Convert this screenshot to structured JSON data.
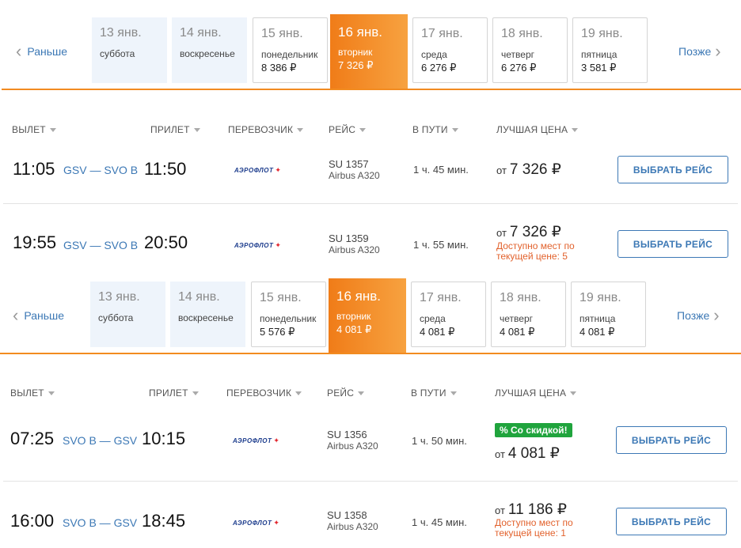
{
  "panels": [
    {
      "nav": {
        "prev": "Раньше",
        "next": "Позже"
      },
      "days": [
        {
          "date": "13 янв.",
          "weekday": "суббота",
          "price": "",
          "state": "past"
        },
        {
          "date": "14 янв.",
          "weekday": "воскресенье",
          "price": "",
          "state": "past"
        },
        {
          "date": "15 янв.",
          "weekday": "понедельник",
          "price": "8 386 ₽",
          "state": "future"
        },
        {
          "date": "16 янв.",
          "weekday": "вторник",
          "price": "7 326 ₽",
          "state": "selected"
        },
        {
          "date": "17 янв.",
          "weekday": "среда",
          "price": "6 276 ₽",
          "state": "future"
        },
        {
          "date": "18 янв.",
          "weekday": "четверг",
          "price": "6 276 ₽",
          "state": "future"
        },
        {
          "date": "19 янв.",
          "weekday": "пятница",
          "price": "3 581 ₽",
          "state": "future"
        }
      ],
      "headers": {
        "dep": "ВЫЛЕТ",
        "arr": "ПРИЛЕТ",
        "carrier": "ПЕРЕВОЗЧИК",
        "flight": "РЕЙС",
        "duration": "В ПУТИ",
        "price": "ЛУЧШАЯ ЦЕНА"
      },
      "flights": [
        {
          "dep": "11:05",
          "route": "GSV — SVO B",
          "arr": "11:50",
          "carrier_logo": "АЭРОФЛОТ",
          "number": "SU 1357",
          "plane": "Airbus A320",
          "duration": "1 ч. 45 мин.",
          "price_prefix": "от",
          "price": "7 326 ₽",
          "seats": "",
          "badge": "",
          "button": "ВЫБРАТЬ РЕЙС"
        },
        {
          "dep": "19:55",
          "route": "GSV — SVO B",
          "arr": "20:50",
          "carrier_logo": "АЭРОФЛОТ",
          "number": "SU 1359",
          "plane": "Airbus A320",
          "duration": "1 ч. 55 мин.",
          "price_prefix": "от",
          "price": "7 326 ₽",
          "seats": "Доступно мест по текущей цене: 5",
          "badge": "",
          "button": "ВЫБРАТЬ РЕЙС"
        }
      ]
    },
    {
      "nav": {
        "prev": "Раньше",
        "next": "Позже"
      },
      "days": [
        {
          "date": "13 янв.",
          "weekday": "суббота",
          "price": "",
          "state": "past"
        },
        {
          "date": "14 янв.",
          "weekday": "воскресенье",
          "price": "",
          "state": "past"
        },
        {
          "date": "15 янв.",
          "weekday": "понедельник",
          "price": "5 576 ₽",
          "state": "future"
        },
        {
          "date": "16 янв.",
          "weekday": "вторник",
          "price": "4 081 ₽",
          "state": "selected"
        },
        {
          "date": "17 янв.",
          "weekday": "среда",
          "price": "4 081 ₽",
          "state": "future"
        },
        {
          "date": "18 янв.",
          "weekday": "четверг",
          "price": "4 081 ₽",
          "state": "future"
        },
        {
          "date": "19 янв.",
          "weekday": "пятница",
          "price": "4 081 ₽",
          "state": "future"
        }
      ],
      "headers": {
        "dep": "ВЫЛЕТ",
        "arr": "ПРИЛЕТ",
        "carrier": "ПЕРЕВОЗЧИК",
        "flight": "РЕЙС",
        "duration": "В ПУТИ",
        "price": "ЛУЧШАЯ ЦЕНА"
      },
      "flights": [
        {
          "dep": "07:25",
          "route": "SVO B — GSV",
          "arr": "10:15",
          "carrier_logo": "АЭРОФЛОТ",
          "number": "SU 1356",
          "plane": "Airbus A320",
          "duration": "1 ч. 50 мин.",
          "price_prefix": "от",
          "price": "4 081 ₽",
          "seats": "",
          "badge": "% Со скидкой!",
          "button": "ВЫБРАТЬ РЕЙС"
        },
        {
          "dep": "16:00",
          "route": "SVO B — GSV",
          "arr": "18:45",
          "carrier_logo": "АЭРОФЛОТ",
          "number": "SU 1358",
          "plane": "Airbus A320",
          "duration": "1 ч. 45 мин.",
          "price_prefix": "от",
          "price": "11 186 ₽",
          "seats": "Доступно мест по текущей цене: 1",
          "badge": "",
          "button": "ВЫБРАТЬ РЕЙС"
        }
      ]
    }
  ]
}
